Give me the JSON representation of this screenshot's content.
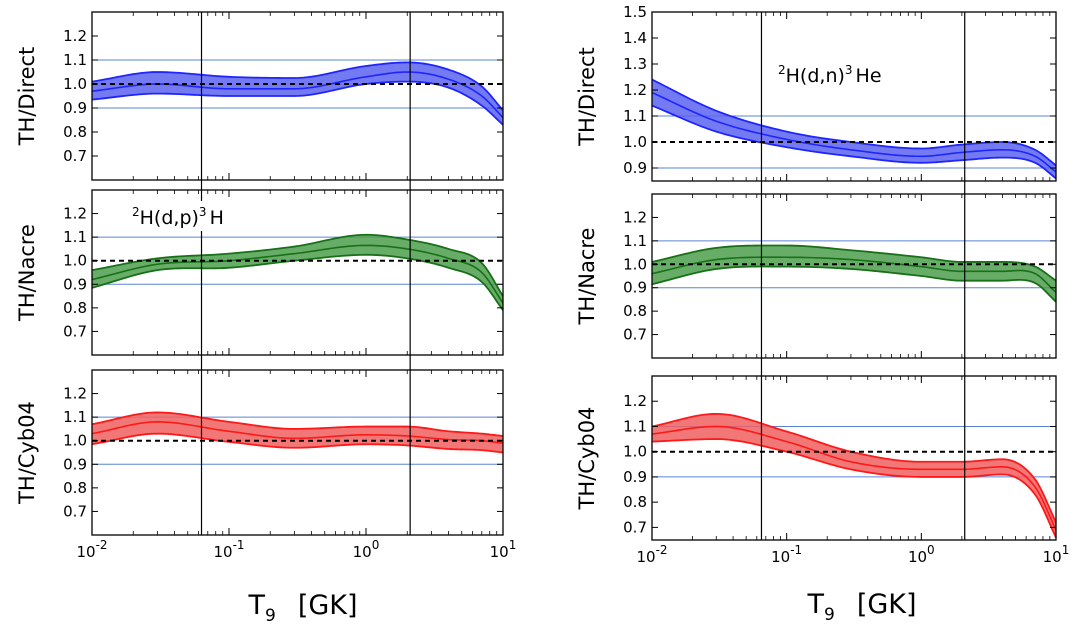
{
  "chart_data": [
    {
      "type": "area",
      "column": "left",
      "reaction": {
        "sup1": "2",
        "main1": "H(d,p)",
        "sup2": "3",
        "main2": "H"
      },
      "reaction_panel": 1,
      "xlabel": {
        "main": "T",
        "sub": "9",
        "unit": "[GK]"
      },
      "xscale": "log",
      "xlim": [
        0.01,
        10
      ],
      "x_ticks": [
        {
          "base": "10",
          "exp": "-2"
        },
        {
          "base": "10",
          "exp": "-1"
        },
        {
          "base": "10",
          "exp": "0"
        },
        {
          "base": "10",
          "exp": "1"
        }
      ],
      "vertical_lines_T9": [
        0.063,
        2.1
      ],
      "panels": [
        {
          "ylabel": "TH/Direct",
          "ylim": [
            0.6,
            1.3
          ],
          "yticks": [
            "0.7",
            "0.8",
            "0.9",
            "1.0",
            "1.1",
            "1.2"
          ],
          "color": "#1f25ff",
          "fill": "#5a63f0",
          "hlines": [
            0.9,
            1.1
          ],
          "ref_line": 1.0,
          "x": [
            0.01,
            0.03,
            0.1,
            0.3,
            1.0,
            2.0,
            4.0,
            7.0,
            10.0
          ],
          "upper": [
            1.01,
            1.05,
            1.03,
            1.025,
            1.075,
            1.09,
            1.06,
            0.99,
            0.89
          ],
          "mid": [
            0.97,
            1.0,
            0.98,
            0.98,
            1.03,
            1.05,
            1.02,
            0.95,
            0.86
          ],
          "lower": [
            0.935,
            0.96,
            0.95,
            0.95,
            1.0,
            1.01,
            0.985,
            0.91,
            0.83
          ]
        },
        {
          "ylabel": "TH/Nacre",
          "ylim": [
            0.6,
            1.3
          ],
          "yticks": [
            "0.7",
            "0.8",
            "0.9",
            "1.0",
            "1.1",
            "1.2"
          ],
          "color": "#187018",
          "fill": "#4c9e4c",
          "hlines": [
            0.9,
            1.1
          ],
          "ref_line": 1.0,
          "x": [
            0.01,
            0.03,
            0.1,
            0.3,
            1.0,
            2.0,
            4.0,
            7.0,
            10.0
          ],
          "upper": [
            0.96,
            1.01,
            1.03,
            1.06,
            1.11,
            1.09,
            1.05,
            0.99,
            0.85
          ],
          "mid": [
            0.92,
            0.985,
            1.0,
            1.03,
            1.065,
            1.05,
            1.01,
            0.95,
            0.82
          ],
          "lower": [
            0.885,
            0.96,
            0.97,
            1.0,
            1.025,
            1.01,
            0.97,
            0.91,
            0.79
          ]
        },
        {
          "ylabel": "TH/Cyb04",
          "ylim": [
            0.6,
            1.3
          ],
          "yticks": [
            "0.7",
            "0.8",
            "0.9",
            "1.0",
            "1.1",
            "1.2"
          ],
          "color": "#ff1818",
          "fill": "#f06060",
          "hlines": [
            0.9,
            1.1
          ],
          "ref_line": 1.0,
          "x": [
            0.01,
            0.03,
            0.1,
            0.3,
            1.0,
            2.0,
            4.0,
            7.0,
            10.0
          ],
          "upper": [
            1.07,
            1.12,
            1.08,
            1.05,
            1.06,
            1.06,
            1.04,
            1.03,
            1.02
          ],
          "mid": [
            1.03,
            1.08,
            1.04,
            1.01,
            1.025,
            1.02,
            1.005,
            1.0,
            0.99
          ],
          "lower": [
            0.985,
            1.03,
            0.995,
            0.97,
            0.985,
            0.98,
            0.965,
            0.96,
            0.95
          ]
        }
      ]
    },
    {
      "type": "area",
      "column": "right",
      "reaction": {
        "sup1": "2",
        "main1": "H(d,n)",
        "sup2": "3",
        "main2": "He"
      },
      "reaction_panel": 0,
      "xlabel": {
        "main": "T",
        "sub": "9",
        "unit": "[GK]"
      },
      "xscale": "log",
      "xlim": [
        0.01,
        10
      ],
      "x_ticks": [
        {
          "base": "10",
          "exp": "-2"
        },
        {
          "base": "10",
          "exp": "-1"
        },
        {
          "base": "10",
          "exp": "0"
        },
        {
          "base": "10",
          "exp": "1"
        }
      ],
      "vertical_lines_T9": [
        0.065,
        2.1
      ],
      "panels": [
        {
          "ylabel": "TH/Direct",
          "ylim": [
            0.85,
            1.5
          ],
          "yticks": [
            "0.9",
            "1.0",
            "1.1",
            "1.2",
            "1.3",
            "1.4",
            "1.5"
          ],
          "color": "#1f25ff",
          "fill": "#5a63f0",
          "hlines": [
            0.9,
            1.1
          ],
          "ref_line": 1.0,
          "x": [
            0.01,
            0.03,
            0.1,
            0.3,
            1.0,
            2.0,
            4.0,
            7.0,
            10.0
          ],
          "upper": [
            1.24,
            1.12,
            1.04,
            1.0,
            0.975,
            0.99,
            1.0,
            0.97,
            0.91
          ],
          "mid": [
            1.19,
            1.08,
            1.01,
            0.97,
            0.945,
            0.96,
            0.97,
            0.945,
            0.885
          ],
          "lower": [
            1.14,
            1.04,
            0.98,
            0.945,
            0.92,
            0.93,
            0.94,
            0.92,
            0.86
          ]
        },
        {
          "ylabel": "TH/Nacre",
          "ylim": [
            0.6,
            1.3
          ],
          "yticks": [
            "0.7",
            "0.8",
            "0.9",
            "1.0",
            "1.1",
            "1.2"
          ],
          "color": "#187018",
          "fill": "#4c9e4c",
          "hlines": [
            0.9,
            1.1
          ],
          "ref_line": 1.0,
          "x": [
            0.01,
            0.03,
            0.1,
            0.3,
            1.0,
            2.0,
            4.0,
            7.0,
            10.0
          ],
          "upper": [
            1.01,
            1.07,
            1.08,
            1.06,
            1.03,
            1.01,
            1.01,
            0.99,
            0.93
          ],
          "mid": [
            0.96,
            1.02,
            1.03,
            1.02,
            0.99,
            0.97,
            0.97,
            0.96,
            0.88
          ],
          "lower": [
            0.915,
            0.98,
            0.99,
            0.98,
            0.95,
            0.93,
            0.93,
            0.92,
            0.84
          ]
        },
        {
          "ylabel": "TH/Cyb04",
          "ylim": [
            0.65,
            1.3
          ],
          "yticks": [
            "0.7",
            "0.8",
            "0.9",
            "1.0",
            "1.1",
            "1.2"
          ],
          "color": "#ff1818",
          "fill": "#f06060",
          "hlines": [
            0.9,
            1.1
          ],
          "ref_line": 1.0,
          "x": [
            0.01,
            0.03,
            0.1,
            0.3,
            1.0,
            2.0,
            4.0,
            7.0,
            10.0
          ],
          "upper": [
            1.1,
            1.15,
            1.08,
            1.0,
            0.96,
            0.96,
            0.97,
            0.89,
            0.72
          ],
          "mid": [
            1.07,
            1.1,
            1.04,
            0.96,
            0.93,
            0.93,
            0.94,
            0.86,
            0.69
          ],
          "lower": [
            1.04,
            1.05,
            1.0,
            0.93,
            0.9,
            0.9,
            0.91,
            0.83,
            0.66
          ]
        }
      ]
    }
  ]
}
